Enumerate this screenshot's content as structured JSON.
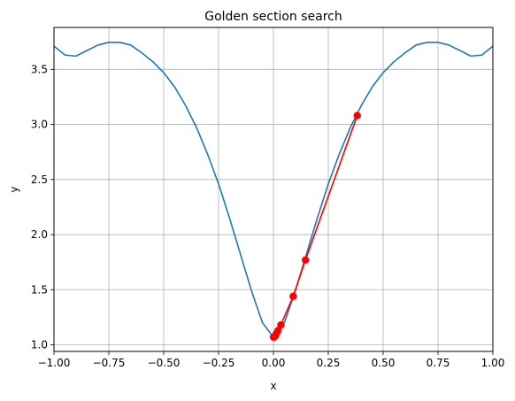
{
  "chart_data": {
    "type": "line",
    "title": "Golden section search",
    "xlabel": "x",
    "ylabel": "y",
    "xlim": [
      -1.0,
      1.0
    ],
    "ylim": [
      0.94,
      3.88
    ],
    "grid": true,
    "x_ticks": [
      -1.0,
      -0.75,
      -0.5,
      -0.25,
      0.0,
      0.25,
      0.5,
      0.75,
      1.0
    ],
    "x_tick_labels": [
      "−1.00",
      "−0.75",
      "−0.50",
      "−0.25",
      "0.00",
      "0.25",
      "0.50",
      "0.75",
      "1.00"
    ],
    "y_ticks": [
      1.0,
      1.5,
      2.0,
      2.5,
      3.0,
      3.5
    ],
    "y_tick_labels": [
      "1.0",
      "1.5",
      "2.0",
      "2.5",
      "3.0",
      "3.5"
    ],
    "series": [
      {
        "color": "#1f77b4",
        "style": "line",
        "x": [
          -1.0,
          -0.95,
          -0.9,
          -0.85,
          -0.8,
          -0.75,
          -0.7,
          -0.65,
          -0.6,
          -0.55,
          -0.5,
          -0.45,
          -0.4,
          -0.35,
          -0.3,
          -0.25,
          -0.2,
          -0.15,
          -0.1,
          -0.05,
          0.0,
          0.05,
          0.1,
          0.15,
          0.2,
          0.25,
          0.3,
          0.35,
          0.4,
          0.45,
          0.5,
          0.55,
          0.6,
          0.65,
          0.7,
          0.75,
          0.8,
          0.85,
          0.9,
          0.95,
          1.0
        ],
        "y": [
          3.71,
          3.63,
          3.62,
          3.67,
          3.72,
          3.745,
          3.745,
          3.72,
          3.65,
          3.57,
          3.47,
          3.34,
          3.17,
          2.97,
          2.73,
          2.46,
          2.15,
          1.82,
          1.49,
          1.2,
          1.07,
          1.2,
          1.49,
          1.82,
          2.15,
          2.46,
          2.73,
          2.97,
          3.17,
          3.34,
          3.47,
          3.57,
          3.65,
          3.72,
          3.745,
          3.745,
          3.72,
          3.67,
          3.62,
          3.63,
          3.71
        ]
      },
      {
        "color": "#ff0000",
        "style": "line+markers",
        "x": [
          0.382,
          0.146,
          0.09,
          0.034,
          0.021,
          0.013,
          0.008,
          0.005,
          0.003,
          0.0
        ],
        "y": [
          3.08,
          1.77,
          1.44,
          1.18,
          1.13,
          1.1,
          1.08,
          1.075,
          1.07,
          1.07
        ]
      }
    ]
  }
}
